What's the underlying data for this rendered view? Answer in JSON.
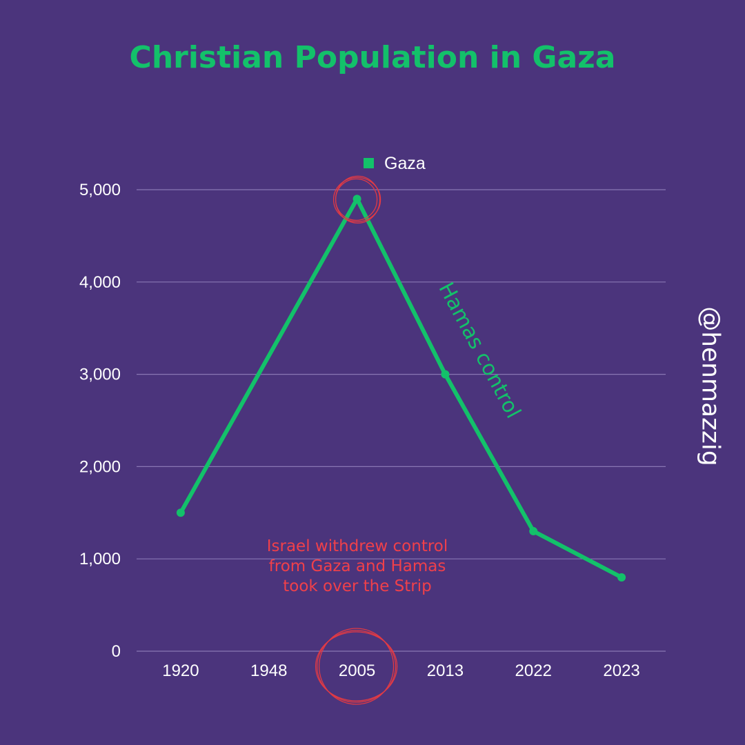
{
  "chart_data": {
    "type": "line",
    "title": "Christian Population in Gaza",
    "categories": [
      "1920",
      "1948",
      "2005",
      "2013",
      "2022",
      "2023"
    ],
    "series": [
      {
        "name": "Gaza",
        "values": [
          1500,
          null,
          4900,
          3000,
          1300,
          800
        ],
        "color": "#13c16a"
      }
    ],
    "ylim": [
      0,
      5000
    ],
    "yticks": [
      0,
      1000,
      2000,
      3000,
      4000,
      5000
    ],
    "ytick_labels": [
      "0",
      "1,000",
      "2,000",
      "3,000",
      "4,000",
      "5,000"
    ],
    "grid": true,
    "legend": "top-center",
    "annotations": {
      "hamas": "Hamas control",
      "note": [
        "Israel withdrew control",
        "from Gaza and Hamas",
        "took over the Strip"
      ],
      "highlight_color": "#e03a45"
    },
    "handle": "@henmazzig"
  }
}
